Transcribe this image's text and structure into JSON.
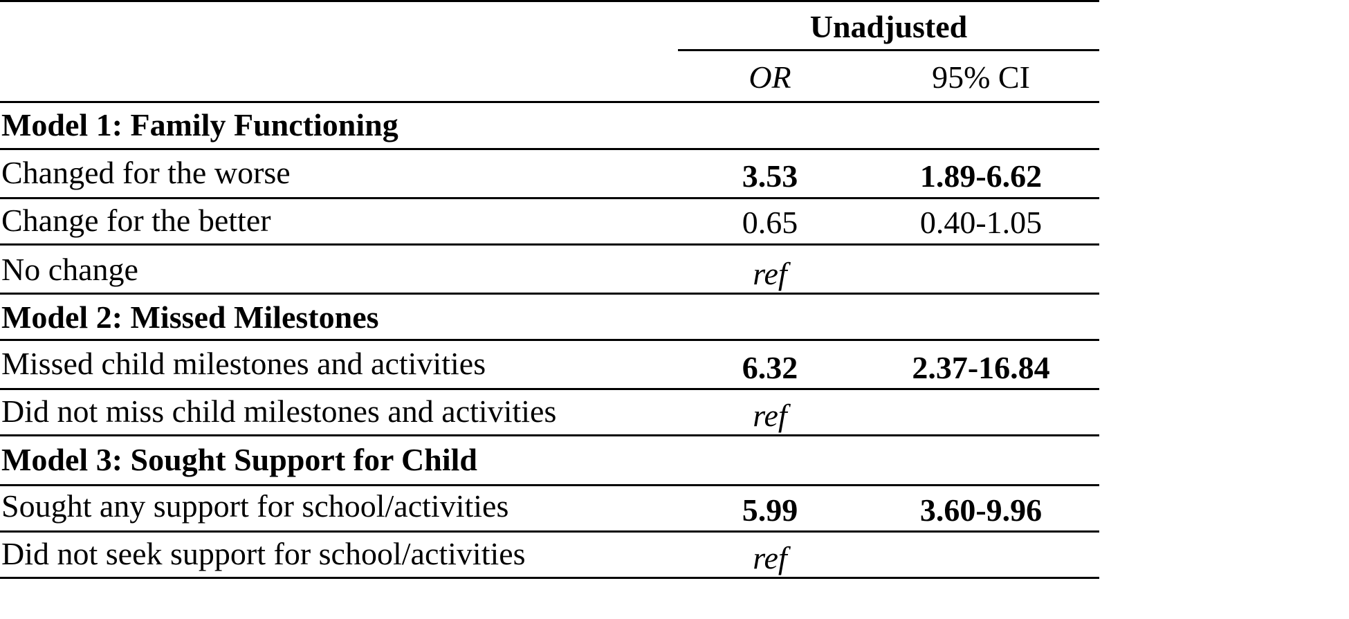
{
  "table": {
    "group_header": "Unadjusted",
    "col_or": "OR",
    "col_ci": "95% CI",
    "sections": [
      {
        "title": "Model 1: Family Functioning",
        "rows": [
          {
            "label": "Changed for the worse",
            "or": "3.53",
            "ci": "1.89-6.62",
            "significant": true
          },
          {
            "label": "Change for the better",
            "or": "0.65",
            "ci": "0.40-1.05",
            "significant": false
          },
          {
            "label": "No change",
            "or": "ref",
            "ci": "",
            "significant": false
          }
        ]
      },
      {
        "title": "Model 2: Missed Milestones",
        "rows": [
          {
            "label": "Missed child milestones and activities",
            "or": "6.32",
            "ci": "2.37-16.84",
            "significant": true
          },
          {
            "label": "Did not miss child milestones and activities",
            "or": "ref",
            "ci": "",
            "significant": false
          }
        ]
      },
      {
        "title": "Model 3: Sought Support for Child",
        "rows": [
          {
            "label": "Sought any support for school/activities",
            "or": "5.99",
            "ci": "3.60-9.96",
            "significant": true
          },
          {
            "label": "Did not seek support for school/activities",
            "or": "ref",
            "ci": "",
            "significant": false
          }
        ]
      }
    ]
  }
}
